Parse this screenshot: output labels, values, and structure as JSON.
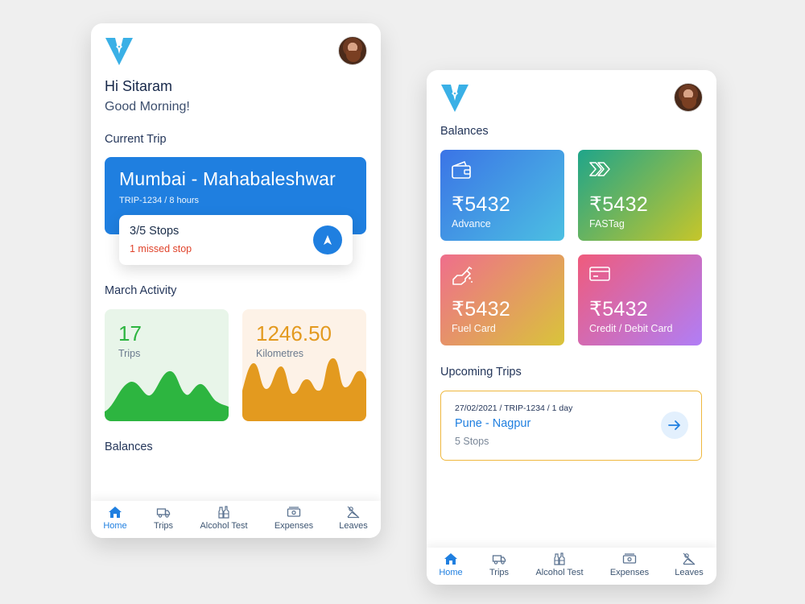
{
  "phone1": {
    "greeting": "Hi Sitaram",
    "subgreeting": "Good Morning!",
    "current_trip_title": "Current Trip",
    "trip": {
      "route": "Mumbai - Mahabaleshwar",
      "meta": "TRIP-1234 / 8 hours",
      "stops": "3/5 Stops",
      "missed": "1 missed stop"
    },
    "activity_title": "March Activity",
    "stats": [
      {
        "value": "17",
        "label": "Trips",
        "color": "#2db540"
      },
      {
        "value": "1246.50",
        "label": "Kilometres",
        "color": "#e39a1f"
      }
    ],
    "balances_title": "Balances"
  },
  "phone2": {
    "balances_title": "Balances",
    "balances": [
      {
        "amount": "₹5432",
        "label": "Advance",
        "icon": "wallet-icon"
      },
      {
        "amount": "₹5432",
        "label": "FASTag",
        "icon": "chevrons-icon"
      },
      {
        "amount": "₹5432",
        "label": "Fuel Card",
        "icon": "fuel-nozzle-icon"
      },
      {
        "amount": "₹5432",
        "label": "Credit / Debit Card",
        "icon": "credit-card-icon"
      }
    ],
    "upcoming_title": "Upcoming Trips",
    "upcoming": {
      "meta": "27/02/2021 / TRIP-1234 / 1 day",
      "route": "Pune - Nagpur",
      "stops": "5 Stops"
    }
  },
  "tabs": [
    {
      "label": "Home",
      "icon": "home-icon",
      "active": true
    },
    {
      "label": "Trips",
      "icon": "truck-icon",
      "active": false
    },
    {
      "label": "Alcohol Test",
      "icon": "bottles-icon",
      "active": false
    },
    {
      "label": "Expenses",
      "icon": "banknote-icon",
      "active": false
    },
    {
      "label": "Leaves",
      "icon": "sleeping-icon",
      "active": false
    }
  ],
  "colors": {
    "primary": "#1f7fe0",
    "alert": "#e0442c",
    "upcoming_border": "#efb83f",
    "logo": "#3ab0e6"
  }
}
